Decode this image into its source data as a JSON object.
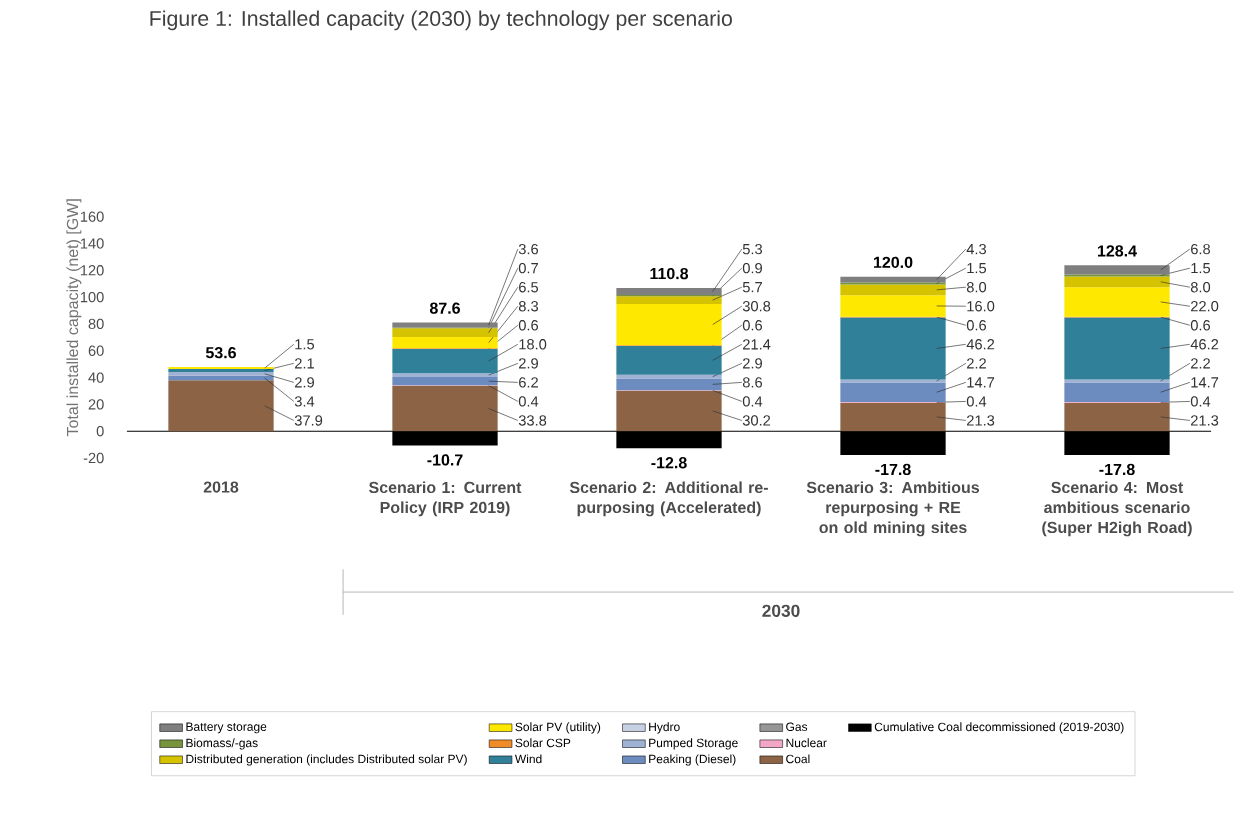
{
  "chart_data": {
    "type": "bar",
    "title": "Figure 1: Installed capacity (2030) by technology per scenario",
    "ylabel": "Total installed capacity (net) [GW]",
    "categories": [
      "2018",
      "Scenario 1: Current Policy (IRP 2019)",
      "Scenario 2: Additional re-purposing (Accelerated)",
      "Scenario 3: Ambitious repurposing + RE on old mining sites",
      "Scenario 4: Most ambitious scenario (Super H2igh Road)"
    ],
    "stacked": true,
    "series": [
      {
        "name": "Coal",
        "color": "#8c6445",
        "values": [
          37.9,
          33.8,
          30.2,
          21.3,
          21.3
        ],
        "value_labels": [
          "37.9",
          "33.8",
          "30.2",
          "21.3",
          "21.3"
        ]
      },
      {
        "name": "Nuclear",
        "color": "#f2a7c6",
        "values": [
          null,
          0.4,
          0.4,
          0.4,
          0.4
        ],
        "value_labels": [
          null,
          "0.4",
          "0.4",
          "0.4",
          "0.4"
        ]
      },
      {
        "name": "Gas",
        "color": "#969696",
        "values": [
          null,
          null,
          null,
          null,
          null
        ]
      },
      {
        "name": "Peaking (Diesel)",
        "color": "#6c8cbf",
        "values": [
          3.4,
          6.2,
          8.6,
          14.7,
          14.7
        ],
        "value_labels": [
          "3.4",
          "6.2",
          "8.6",
          "14.7",
          "14.7"
        ]
      },
      {
        "name": "Pumped Storage",
        "color": "#9fb2d3",
        "values": [
          2.9,
          2.9,
          2.9,
          2.2,
          2.2
        ],
        "value_labels": [
          "2.9",
          "2.9",
          "2.9",
          "2.2",
          "2.2"
        ]
      },
      {
        "name": "Hydro",
        "color": "#c6d1e4",
        "values": [
          null,
          null,
          null,
          null,
          null
        ]
      },
      {
        "name": "Wind",
        "color": "#31809a",
        "values": [
          2.1,
          18.0,
          21.4,
          46.2,
          46.2
        ],
        "value_labels": [
          "2.1",
          "18.0",
          "21.4",
          "46.2",
          "46.2"
        ]
      },
      {
        "name": "Solar CSP",
        "color": "#f08b2a",
        "values": [
          null,
          0.6,
          0.6,
          0.6,
          0.6
        ],
        "value_labels": [
          null,
          "0.6",
          "0.6",
          "0.6",
          "0.6"
        ]
      },
      {
        "name": "Solar PV (utility)",
        "color": "#ffe800",
        "values": [
          1.5,
          8.3,
          30.8,
          16.0,
          22.0
        ],
        "value_labels": [
          "1.5",
          "8.3",
          "30.8",
          "16.0",
          "22.0"
        ]
      },
      {
        "name": "Distributed generation (includes Distributed solar PV)",
        "color": "#d6c300",
        "values": [
          null,
          6.5,
          5.7,
          8.0,
          8.0
        ],
        "value_labels": [
          null,
          "6.5",
          "5.7",
          "8.0",
          "8.0"
        ]
      },
      {
        "name": "Biomass/-gas",
        "color": "#77933c",
        "values": [
          null,
          0.7,
          0.9,
          1.5,
          1.5
        ],
        "value_labels": [
          null,
          "0.7",
          "0.9",
          "1.5",
          "1.5"
        ]
      },
      {
        "name": "Battery storage",
        "color": "#7f7f7f",
        "values": [
          null,
          3.6,
          5.3,
          4.3,
          6.8
        ],
        "value_labels": [
          null,
          "3.6",
          "5.3",
          "4.3",
          "6.8"
        ]
      },
      {
        "name": "Cumulative Coal decommissioned (2019-2030)",
        "color": "#000000",
        "values": [
          null,
          -10.7,
          -12.8,
          -17.8,
          -17.8
        ],
        "value_labels": [
          null,
          "-10.7",
          "-12.8",
          "-17.8",
          "-17.8"
        ]
      }
    ],
    "ylim": [
      -20,
      160
    ],
    "yticks": [
      -20,
      0,
      20,
      40,
      60,
      80,
      100,
      120,
      140,
      160
    ],
    "ref_lines": [
      {
        "axis": "y",
        "value": 0
      }
    ],
    "legend": "bottom",
    "annotations": [
      "53.6",
      "87.6",
      "110.8",
      "120.0",
      "128.4",
      "2030"
    ]
  }
}
